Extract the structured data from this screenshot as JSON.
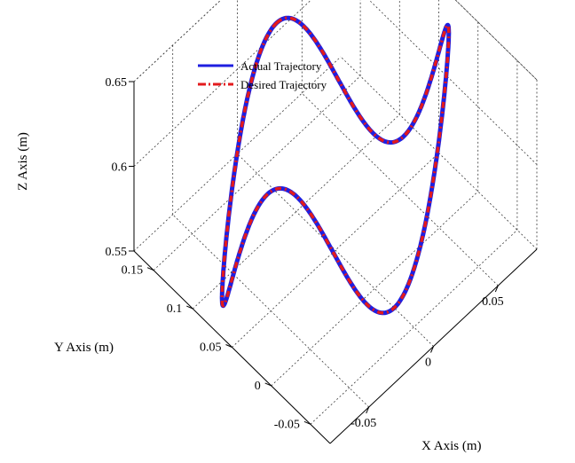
{
  "chart_data": {
    "type": "line3d",
    "title": "",
    "xlabel": "X Axis (m)",
    "ylabel": "Y Axis (m)",
    "zlabel": "Z Axis (m)",
    "xlim": [
      -0.08,
      0.08
    ],
    "ylim": [
      -0.075,
      0.175
    ],
    "zlim": [
      0.55,
      0.65
    ],
    "xticks": [
      "-0.05",
      "0",
      "0.05"
    ],
    "yticks": [
      "-0.05",
      "0",
      "0.05",
      "0.1",
      "0.15"
    ],
    "zticks": [
      "0.55",
      "0.6",
      "0.65"
    ],
    "grid": true,
    "legend_position": "top",
    "series": [
      {
        "name": "Actual Trajectory",
        "color": "#1f1fe0",
        "style": "solid"
      },
      {
        "name": "Desired Trajectory",
        "color": "#e31a1c",
        "style": "dash-dot"
      }
    ],
    "path": {
      "parametric": "x = 0.075*sin(t), y = 0.075*cos(t) + 0.05, z = 0.6 + 0.05*cos(3t)",
      "points": [
        {
          "t": 0,
          "x": 0,
          "y": 0.125,
          "z": 0.65
        },
        {
          "t": 0.5236,
          "x": 0.0375,
          "y": 0.115,
          "z": 0.6
        },
        {
          "t": 1.0472,
          "x": 0.065,
          "y": 0.0875,
          "z": 0.55
        },
        {
          "t": 1.5708,
          "x": 0.075,
          "y": 0.05,
          "z": 0.6
        },
        {
          "t": 2.0944,
          "x": 0.065,
          "y": 0.0125,
          "z": 0.65
        },
        {
          "t": 2.618,
          "x": 0.0375,
          "y": -0.015,
          "z": 0.6
        },
        {
          "t": 3.1416,
          "x": 0,
          "y": -0.025,
          "z": 0.55
        },
        {
          "t": 3.6652,
          "x": -0.0375,
          "y": -0.015,
          "z": 0.6
        },
        {
          "t": 4.1888,
          "x": -0.065,
          "y": 0.0125,
          "z": 0.65
        },
        {
          "t": 4.7124,
          "x": -0.075,
          "y": 0.05,
          "z": 0.6
        },
        {
          "t": 5.236,
          "x": -0.065,
          "y": 0.0875,
          "z": 0.55
        },
        {
          "t": 5.7596,
          "x": -0.0375,
          "y": 0.115,
          "z": 0.6
        },
        {
          "t": 6.2832,
          "x": 0,
          "y": 0.125,
          "z": 0.65
        }
      ]
    }
  }
}
